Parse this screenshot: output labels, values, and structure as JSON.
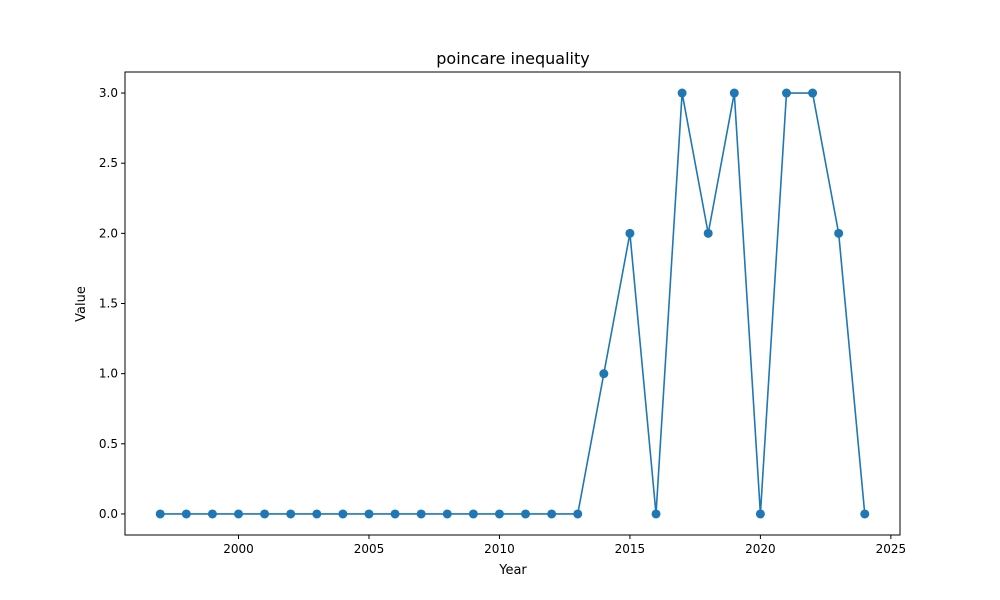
{
  "chart_data": {
    "type": "line",
    "title": "poincare inequality",
    "xlabel": "Year",
    "ylabel": "Value",
    "xlim": [
      1995.65,
      2025.35
    ],
    "ylim": [
      -0.15,
      3.15
    ],
    "xticks": [
      2000,
      2005,
      2010,
      2015,
      2020,
      2025
    ],
    "yticks": [
      0.0,
      0.5,
      1.0,
      1.5,
      2.0,
      2.5,
      3.0
    ],
    "xtick_labels": [
      "2000",
      "2005",
      "2010",
      "2015",
      "2020",
      "2025"
    ],
    "ytick_labels": [
      "0.0",
      "0.5",
      "1.0",
      "1.5",
      "2.0",
      "2.5",
      "3.0"
    ],
    "grid": false,
    "series": [
      {
        "color": "#1f77b4",
        "marker": "circle",
        "x": [
          1997,
          1998,
          1999,
          2000,
          2001,
          2002,
          2003,
          2004,
          2005,
          2006,
          2007,
          2008,
          2009,
          2010,
          2011,
          2012,
          2013,
          2014,
          2015,
          2016,
          2017,
          2018,
          2019,
          2020,
          2021,
          2022,
          2023,
          2024
        ],
        "y": [
          0,
          0,
          0,
          0,
          0,
          0,
          0,
          0,
          0,
          0,
          0,
          0,
          0,
          0,
          0,
          0,
          0,
          1,
          2,
          0,
          3,
          2,
          3,
          0,
          3,
          3,
          2,
          0
        ]
      }
    ]
  }
}
